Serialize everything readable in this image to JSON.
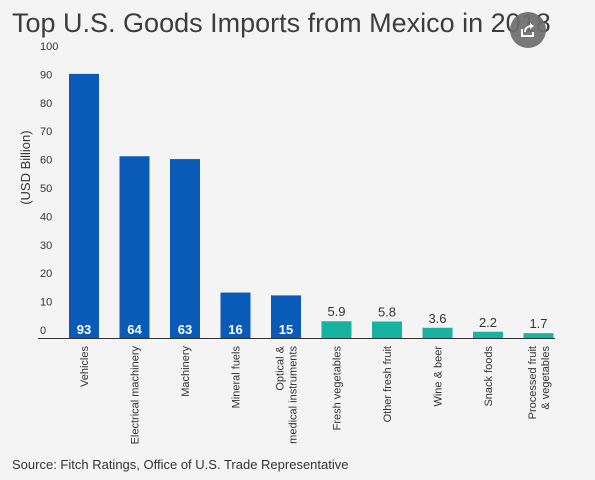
{
  "title": "Top U.S. Goods Imports from Mexico in 2018",
  "source": "Source: Fitch Ratings, Office of U.S. Trade Representative",
  "share_icon": "share-icon",
  "colors": {
    "primary_bar": "#0a5bb8",
    "secondary_bar": "#17b3a0",
    "text": "#333333",
    "axis": "#333333"
  },
  "chart_data": {
    "type": "bar",
    "ylabel": "(USD Billion)",
    "xlabel": "",
    "ylim": [
      0,
      100
    ],
    "yticks": [
      0,
      10,
      20,
      30,
      40,
      50,
      60,
      70,
      80,
      90,
      100
    ],
    "grid": false,
    "categories": [
      "Vehicles",
      "Electrical machinery",
      "Machinery",
      "Mineral fuels",
      "Optical & medical instruments",
      "Fresh vegetables",
      "Other fresh fruit",
      "Wine & beer",
      "Snack foods",
      "Processed fruit & vegetables"
    ],
    "values": [
      93,
      64,
      63,
      16,
      15,
      5.9,
      5.8,
      3.6,
      2.2,
      1.7
    ],
    "category_groups": [
      "primary",
      "primary",
      "primary",
      "primary",
      "primary",
      "secondary",
      "secondary",
      "secondary",
      "secondary",
      "secondary"
    ]
  }
}
